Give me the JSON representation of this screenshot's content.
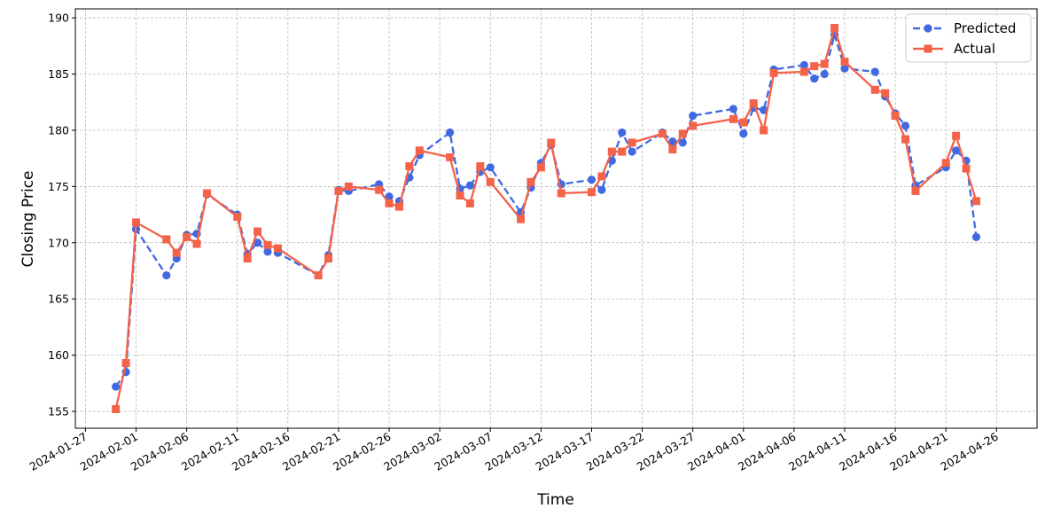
{
  "chart_data": {
    "type": "line",
    "title": "",
    "xlabel": "Time",
    "ylabel": "Closing Price",
    "xlim": [
      "2024-01-26",
      "2024-04-30"
    ],
    "ylim": [
      153.5,
      190.8
    ],
    "x_ticks": [
      "2024-01-27",
      "2024-02-01",
      "2024-02-06",
      "2024-02-11",
      "2024-02-16",
      "2024-02-21",
      "2024-02-26",
      "2024-03-02",
      "2024-03-07",
      "2024-03-12",
      "2024-03-17",
      "2024-03-22",
      "2024-03-27",
      "2024-04-01",
      "2024-04-06",
      "2024-04-11",
      "2024-04-16",
      "2024-04-21",
      "2024-04-26"
    ],
    "y_ticks": [
      155,
      160,
      165,
      170,
      175,
      180,
      185,
      190
    ],
    "grid": true,
    "legend_position": "top-right",
    "series": [
      {
        "name": "Predicted",
        "color": "#4169e1",
        "linestyle": "dashed",
        "marker": "circle",
        "points": [
          [
            "2024-01-30",
            157.2
          ],
          [
            "2024-01-31",
            158.5
          ],
          [
            "2024-02-01",
            171.2
          ],
          [
            "2024-02-04",
            167.1
          ],
          [
            "2024-02-05",
            168.6
          ],
          [
            "2024-02-06",
            170.7
          ],
          [
            "2024-02-07",
            170.8
          ],
          [
            "2024-02-08",
            174.3
          ],
          [
            "2024-02-11",
            172.5
          ],
          [
            "2024-02-12",
            169.0
          ],
          [
            "2024-02-13",
            170.0
          ],
          [
            "2024-02-14",
            169.2
          ],
          [
            "2024-02-15",
            169.1
          ],
          [
            "2024-02-19",
            167.1
          ],
          [
            "2024-02-20",
            168.9
          ],
          [
            "2024-02-21",
            174.7
          ],
          [
            "2024-02-22",
            174.6
          ],
          [
            "2024-02-25",
            175.2
          ],
          [
            "2024-02-26",
            174.1
          ],
          [
            "2024-02-27",
            173.7
          ],
          [
            "2024-02-28",
            175.8
          ],
          [
            "2024-02-29",
            177.8
          ],
          [
            "2024-03-03",
            179.8
          ],
          [
            "2024-03-04",
            174.8
          ],
          [
            "2024-03-05",
            175.1
          ],
          [
            "2024-03-06",
            176.3
          ],
          [
            "2024-03-07",
            176.7
          ],
          [
            "2024-03-10",
            172.7
          ],
          [
            "2024-03-11",
            174.9
          ],
          [
            "2024-03-12",
            177.1
          ],
          [
            "2024-03-13",
            178.7
          ],
          [
            "2024-03-14",
            175.2
          ],
          [
            "2024-03-17",
            175.6
          ],
          [
            "2024-03-18",
            174.7
          ],
          [
            "2024-03-19",
            177.3
          ],
          [
            "2024-03-20",
            179.8
          ],
          [
            "2024-03-21",
            178.1
          ],
          [
            "2024-03-24",
            179.8
          ],
          [
            "2024-03-25",
            179.0
          ],
          [
            "2024-03-26",
            178.9
          ],
          [
            "2024-03-27",
            181.3
          ],
          [
            "2024-03-31",
            181.9
          ],
          [
            "2024-04-01",
            179.7
          ],
          [
            "2024-04-02",
            182.0
          ],
          [
            "2024-04-03",
            181.8
          ],
          [
            "2024-04-04",
            185.4
          ],
          [
            "2024-04-07",
            185.8
          ],
          [
            "2024-04-08",
            184.6
          ],
          [
            "2024-04-09",
            185.0
          ],
          [
            "2024-04-10",
            188.5
          ],
          [
            "2024-04-11",
            185.5
          ],
          [
            "2024-04-14",
            185.2
          ],
          [
            "2024-04-15",
            183.0
          ],
          [
            "2024-04-16",
            181.5
          ],
          [
            "2024-04-17",
            180.4
          ],
          [
            "2024-04-18",
            175.1
          ],
          [
            "2024-04-21",
            176.7
          ],
          [
            "2024-04-22",
            178.2
          ],
          [
            "2024-04-23",
            177.3
          ],
          [
            "2024-04-24",
            170.5
          ]
        ]
      },
      {
        "name": "Actual",
        "color": "#f4624a",
        "linestyle": "solid",
        "marker": "square",
        "points": [
          [
            "2024-01-30",
            155.2
          ],
          [
            "2024-01-31",
            159.3
          ],
          [
            "2024-02-01",
            171.8
          ],
          [
            "2024-02-04",
            170.3
          ],
          [
            "2024-02-05",
            169.1
          ],
          [
            "2024-02-06",
            170.5
          ],
          [
            "2024-02-07",
            169.9
          ],
          [
            "2024-02-08",
            174.4
          ],
          [
            "2024-02-11",
            172.3
          ],
          [
            "2024-02-12",
            168.6
          ],
          [
            "2024-02-13",
            171.0
          ],
          [
            "2024-02-14",
            169.8
          ],
          [
            "2024-02-15",
            169.5
          ],
          [
            "2024-02-19",
            167.1
          ],
          [
            "2024-02-20",
            168.6
          ],
          [
            "2024-02-21",
            174.6
          ],
          [
            "2024-02-22",
            175.0
          ],
          [
            "2024-02-25",
            174.7
          ],
          [
            "2024-02-26",
            173.5
          ],
          [
            "2024-02-27",
            173.2
          ],
          [
            "2024-02-28",
            176.8
          ],
          [
            "2024-02-29",
            178.2
          ],
          [
            "2024-03-03",
            177.6
          ],
          [
            "2024-03-04",
            174.2
          ],
          [
            "2024-03-05",
            173.5
          ],
          [
            "2024-03-06",
            176.8
          ],
          [
            "2024-03-07",
            175.4
          ],
          [
            "2024-03-10",
            172.1
          ],
          [
            "2024-03-11",
            175.4
          ],
          [
            "2024-03-12",
            176.7
          ],
          [
            "2024-03-13",
            178.9
          ],
          [
            "2024-03-14",
            174.4
          ],
          [
            "2024-03-17",
            174.5
          ],
          [
            "2024-03-18",
            175.9
          ],
          [
            "2024-03-19",
            178.1
          ],
          [
            "2024-03-20",
            178.1
          ],
          [
            "2024-03-21",
            178.9
          ],
          [
            "2024-03-24",
            179.7
          ],
          [
            "2024-03-25",
            178.3
          ],
          [
            "2024-03-26",
            179.7
          ],
          [
            "2024-03-27",
            180.4
          ],
          [
            "2024-03-31",
            181.0
          ],
          [
            "2024-04-01",
            180.7
          ],
          [
            "2024-04-02",
            182.4
          ],
          [
            "2024-04-03",
            180.0
          ],
          [
            "2024-04-04",
            185.1
          ],
          [
            "2024-04-07",
            185.2
          ],
          [
            "2024-04-08",
            185.7
          ],
          [
            "2024-04-09",
            185.9
          ],
          [
            "2024-04-10",
            189.1
          ],
          [
            "2024-04-11",
            186.1
          ],
          [
            "2024-04-14",
            183.6
          ],
          [
            "2024-04-15",
            183.3
          ],
          [
            "2024-04-16",
            181.3
          ],
          [
            "2024-04-17",
            179.2
          ],
          [
            "2024-04-18",
            174.6
          ],
          [
            "2024-04-21",
            177.1
          ],
          [
            "2024-04-22",
            179.5
          ],
          [
            "2024-04-23",
            176.6
          ],
          [
            "2024-04-24",
            173.7
          ]
        ]
      }
    ]
  }
}
